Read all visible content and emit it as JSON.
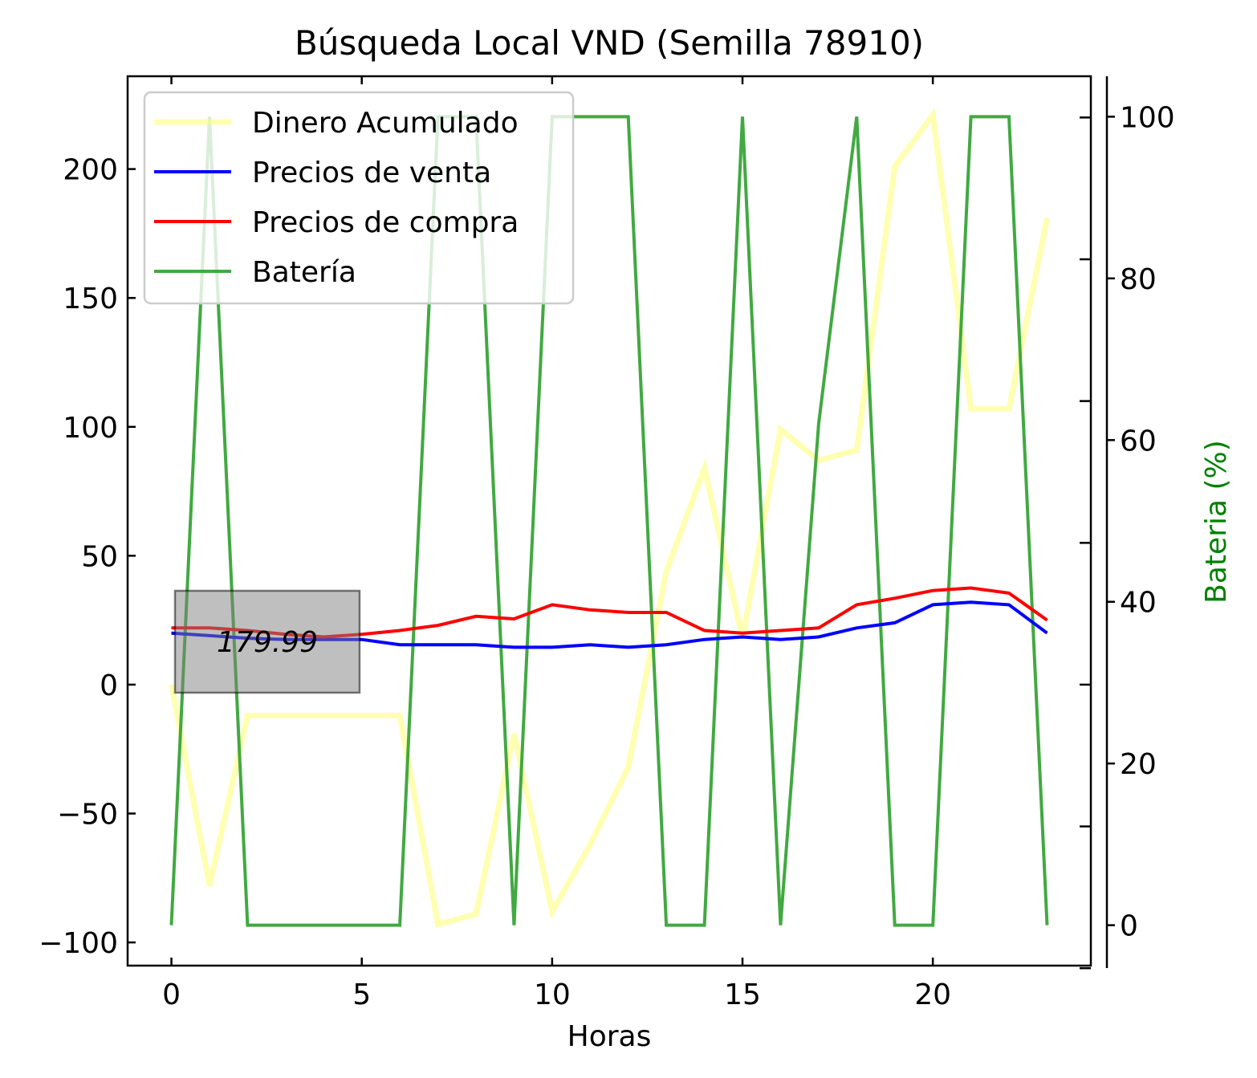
{
  "chart_data": {
    "type": "line",
    "title": "Búsqueda Local VND (Semilla 78910)",
    "xlabel": "Horas",
    "ylabel": "",
    "y2label": "Bateria (%)",
    "xlim": [
      -1.15,
      24.15
    ],
    "ylim": [
      -109,
      236
    ],
    "y2lim": [
      -5,
      105
    ],
    "x_ticks": [
      0,
      5,
      10,
      15,
      20
    ],
    "x_tick_labels": [
      "0",
      "5",
      "10",
      "15",
      "20"
    ],
    "y_ticks": [
      -100,
      -50,
      0,
      50,
      100,
      150,
      200
    ],
    "y_tick_labels": [
      "−100",
      "−50",
      "0",
      "50",
      "100",
      "150",
      "200"
    ],
    "y2_ticks": [
      0,
      20,
      40,
      60,
      80,
      100
    ],
    "y2_tick_labels": [
      "0",
      "20",
      "40",
      "60",
      "80",
      "100"
    ],
    "grid": false,
    "legend_position": "top-left",
    "x": [
      0,
      1,
      2,
      3,
      4,
      5,
      6,
      7,
      8,
      9,
      10,
      11,
      12,
      13,
      14,
      15,
      16,
      17,
      18,
      19,
      20,
      21,
      22,
      23
    ],
    "series": [
      {
        "name": "Dinero Acumulado",
        "axis": "left",
        "color": "#ffff66",
        "values": [
          0,
          -78,
          -12,
          -12,
          -12,
          -12,
          -12,
          -93,
          -89,
          -19,
          -88,
          -62,
          -32,
          44,
          84,
          18,
          99,
          87,
          91,
          201,
          221,
          107,
          107,
          181
        ]
      },
      {
        "name": "Precios de venta",
        "axis": "left",
        "color": "#0000ff",
        "values": [
          20,
          19,
          18,
          17.5,
          17.5,
          17.5,
          15.5,
          15.5,
          15.5,
          14.5,
          14.5,
          15.5,
          14.5,
          15.5,
          17.5,
          18.5,
          17.5,
          18.5,
          22,
          24,
          31,
          32,
          31,
          20
        ]
      },
      {
        "name": "Precios de compra",
        "axis": "left",
        "color": "#ff0000",
        "values": [
          22,
          22,
          21,
          19.5,
          18.5,
          19.5,
          21,
          23,
          26.5,
          25.5,
          31,
          29,
          28,
          28,
          21,
          20,
          21,
          22,
          31,
          33.5,
          36.5,
          37.5,
          35.5,
          25
        ]
      },
      {
        "name": "Batería",
        "axis": "right",
        "color": "#2ca02c",
        "values": [
          0,
          100,
          0,
          0,
          0,
          0,
          0,
          100,
          100,
          0,
          100,
          100,
          100,
          0,
          0,
          100,
          0,
          62,
          100,
          0,
          0,
          100,
          100,
          0
        ]
      }
    ],
    "annotation": {
      "text": "179.99"
    }
  },
  "colors": {
    "battery_axis_label": "#008000",
    "annotation_box": "#808080"
  }
}
